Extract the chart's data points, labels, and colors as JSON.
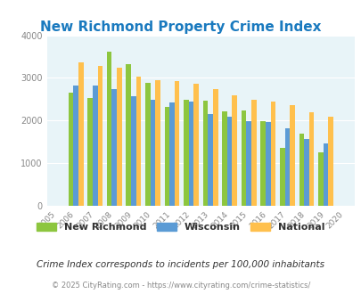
{
  "title": "New Richmond Property Crime Index",
  "years": [
    2005,
    2006,
    2007,
    2008,
    2009,
    2010,
    2011,
    2012,
    2013,
    2014,
    2015,
    2016,
    2017,
    2018,
    2019,
    2020
  ],
  "new_richmond": [
    null,
    2650,
    2530,
    3620,
    3320,
    2880,
    2310,
    2480,
    2460,
    2220,
    2230,
    1980,
    1360,
    1700,
    1250,
    null
  ],
  "wisconsin": [
    null,
    2830,
    2820,
    2730,
    2580,
    2490,
    2420,
    2440,
    2160,
    2080,
    1990,
    1960,
    1810,
    1560,
    1470,
    null
  ],
  "national": [
    null,
    3370,
    3280,
    3230,
    3040,
    2950,
    2930,
    2870,
    2730,
    2600,
    2490,
    2450,
    2370,
    2190,
    2100,
    null
  ],
  "colors": {
    "new_richmond": "#8dc63f",
    "wisconsin": "#5b9bd5",
    "national": "#ffc04d"
  },
  "bg_color": "#e8f4f8",
  "ylim": [
    0,
    4000
  ],
  "yticks": [
    0,
    1000,
    2000,
    3000,
    4000
  ],
  "subtitle": "Crime Index corresponds to incidents per 100,000 inhabitants",
  "footer": "© 2025 CityRating.com - https://www.cityrating.com/crime-statistics/",
  "legend_labels": [
    "New Richmond",
    "Wisconsin",
    "National"
  ]
}
